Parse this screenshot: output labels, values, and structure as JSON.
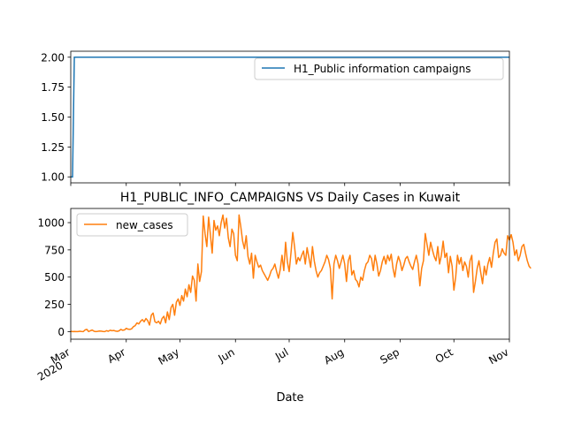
{
  "chart_data": [
    {
      "type": "line",
      "title": "",
      "ylim": [
        0.95,
        2.05
      ],
      "yticks": [
        "1.00",
        "1.25",
        "1.50",
        "1.75",
        "2.00"
      ],
      "legend": {
        "position": "top-right"
      },
      "series": [
        {
          "name": "H1_Public information campaigns",
          "color": "#1f77b4",
          "points": [
            {
              "x": "2020-03-01",
              "y": 1
            },
            {
              "x": "2020-03-02",
              "y": 1
            },
            {
              "x": "2020-03-03",
              "y": 2
            },
            {
              "x": "2020-11-01",
              "y": 2
            }
          ]
        }
      ]
    },
    {
      "type": "line",
      "title": "H1_PUBLIC_INFO_CAMPAIGNS VS Daily Cases in Kuwait",
      "xlabel": "Date",
      "ylim": [
        -70,
        1130
      ],
      "yticks": [
        "0",
        "250",
        "500",
        "750",
        "1000"
      ],
      "xrange": [
        "2020-03-01",
        "2020-11-01"
      ],
      "xticks": [
        {
          "date": "2020-03-01",
          "label": "Mar",
          "sublabel": "2020"
        },
        {
          "date": "2020-04-01",
          "label": "Apr"
        },
        {
          "date": "2020-05-01",
          "label": "May"
        },
        {
          "date": "2020-06-01",
          "label": "Jun"
        },
        {
          "date": "2020-07-01",
          "label": "Jul"
        },
        {
          "date": "2020-08-01",
          "label": "Aug"
        },
        {
          "date": "2020-09-01",
          "label": "Sep"
        },
        {
          "date": "2020-10-01",
          "label": "Oct"
        },
        {
          "date": "2020-11-01",
          "label": "Nov"
        }
      ],
      "legend": {
        "position": "top-left"
      },
      "series": [
        {
          "name": "new_cases",
          "color": "#ff7f0e",
          "start": "2020-03-01",
          "values": [
            2,
            0,
            1,
            0,
            0,
            3,
            1,
            0,
            15,
            20,
            0,
            8,
            14,
            3,
            0,
            2,
            5,
            4,
            1,
            0,
            8,
            3,
            12,
            8,
            10,
            5,
            2,
            7,
            20,
            12,
            15,
            30,
            22,
            20,
            25,
            45,
            55,
            80,
            70,
            95,
            110,
            90,
            120,
            100,
            60,
            150,
            170,
            90,
            80,
            95,
            70,
            120,
            140,
            80,
            180,
            110,
            220,
            250,
            150,
            270,
            300,
            240,
            330,
            280,
            390,
            320,
            430,
            360,
            510,
            470,
            280,
            620,
            460,
            550,
            1060,
            900,
            780,
            1050,
            890,
            720,
            1020,
            930,
            970,
            880,
            1000,
            1070,
            950,
            1040,
            860,
            780,
            940,
            900,
            700,
            650,
            1070,
            960,
            830,
            760,
            880,
            690,
            620,
            720,
            490,
            700,
            640,
            590,
            610,
            560,
            530,
            500,
            470,
            510,
            560,
            580,
            620,
            550,
            490,
            570,
            700,
            560,
            820,
            640,
            550,
            720,
            910,
            780,
            620,
            680,
            650,
            700,
            740,
            620,
            770,
            680,
            590,
            780,
            650,
            560,
            500,
            540,
            560,
            600,
            640,
            700,
            660,
            580,
            300,
            620,
            700,
            650,
            580,
            640,
            700,
            620,
            460,
            650,
            700,
            520,
            560,
            480,
            460,
            410,
            500,
            470,
            560,
            620,
            640,
            700,
            670,
            560,
            700,
            620,
            510,
            560,
            640,
            690,
            620,
            700,
            650,
            710,
            580,
            500,
            620,
            690,
            640,
            560,
            610,
            670,
            690,
            640,
            600,
            570,
            640,
            700,
            620,
            420,
            580,
            650,
            900,
            800,
            700,
            820,
            750,
            690,
            650,
            780,
            620,
            700,
            830,
            680,
            720,
            540,
            690,
            600,
            380,
            500,
            700,
            620,
            680,
            560,
            640,
            600,
            500,
            650,
            700,
            360,
            460,
            580,
            650,
            540,
            440,
            600,
            520,
            620,
            680,
            590,
            720,
            820,
            850,
            680,
            700,
            760,
            720,
            700,
            880,
            840,
            890,
            820,
            700,
            750,
            650,
            700,
            780,
            800,
            720,
            650,
            600,
            580
          ]
        }
      ]
    }
  ]
}
